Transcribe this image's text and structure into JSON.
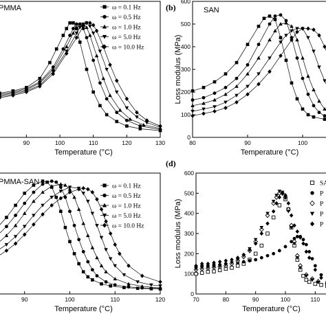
{
  "chart_data": [
    {
      "panel": "a",
      "type": "line",
      "title": "PMMA",
      "xlabel": "Temperature (°C)",
      "ylabel": "",
      "xlim": [
        78,
        130
      ],
      "ylim": [
        0,
        600
      ],
      "xticks": [
        "90",
        "100",
        "110",
        "120",
        "130"
      ],
      "yticks": [],
      "legend_position": "top-right",
      "series": [
        {
          "name": "ω = 0.1   Hz",
          "marker": "square",
          "x": [
            78,
            82,
            86,
            90,
            94,
            97,
            99,
            101,
            102,
            103,
            104,
            105,
            106,
            108,
            110,
            112,
            114,
            117,
            120,
            124,
            130
          ],
          "y": [
            190,
            195,
            205,
            220,
            260,
            330,
            390,
            450,
            480,
            505,
            505,
            480,
            420,
            300,
            200,
            140,
            100,
            70,
            50,
            38,
            30
          ]
        },
        {
          "name": "ω = 0.5   Hz",
          "marker": "circle",
          "x": [
            78,
            82,
            86,
            90,
            94,
            98,
            101,
            103,
            104,
            105,
            106,
            107,
            108,
            110,
            112,
            114,
            117,
            120,
            124,
            130
          ],
          "y": [
            185,
            190,
            200,
            215,
            245,
            310,
            390,
            450,
            480,
            500,
            500,
            480,
            440,
            340,
            240,
            170,
            110,
            75,
            50,
            35
          ]
        },
        {
          "name": "ω = 1.0   Hz",
          "marker": "triangle-up",
          "x": [
            78,
            82,
            86,
            90,
            94,
            98,
            102,
            104,
            105,
            106,
            107,
            108,
            109,
            111,
            113,
            115,
            118,
            121,
            125,
            130
          ],
          "y": [
            180,
            185,
            195,
            210,
            240,
            300,
            400,
            460,
            485,
            500,
            500,
            485,
            450,
            360,
            260,
            185,
            120,
            80,
            55,
            40
          ]
        },
        {
          "name": "ω = 5.0   Hz",
          "marker": "triangle-down",
          "x": [
            78,
            82,
            86,
            90,
            94,
            98,
            102,
            105,
            106,
            107,
            108,
            109,
            110,
            112,
            114,
            117,
            120,
            123,
            126,
            130
          ],
          "y": [
            175,
            180,
            190,
            205,
            230,
            290,
            380,
            460,
            485,
            500,
            505,
            490,
            460,
            380,
            300,
            200,
            130,
            90,
            65,
            45
          ]
        },
        {
          "name": "ω = 10.0 Hz",
          "marker": "diamond",
          "x": [
            78,
            82,
            86,
            90,
            94,
            98,
            102,
            105,
            107,
            108,
            109,
            110,
            111,
            113,
            115,
            117,
            120,
            123,
            126,
            130
          ],
          "y": [
            170,
            175,
            185,
            200,
            225,
            280,
            370,
            440,
            490,
            505,
            505,
            495,
            470,
            400,
            320,
            250,
            170,
            110,
            75,
            50
          ]
        }
      ]
    },
    {
      "panel": "b",
      "type": "line",
      "title": "SAN",
      "xlabel": "Temperature (°C)",
      "ylabel": "Loss modulus (MPa)",
      "xlim": [
        80,
        105
      ],
      "ylim": [
        0,
        600
      ],
      "xticks": [
        "80",
        "90",
        "100"
      ],
      "yticks": [
        "0",
        "100",
        "200",
        "300",
        "400",
        "500",
        "600"
      ],
      "legend_position": "top-right",
      "series": [
        {
          "name": "",
          "marker": "square",
          "x": [
            80,
            82,
            84,
            86,
            88,
            90,
            92,
            93,
            94,
            95,
            96,
            97,
            98,
            99,
            100,
            101,
            102,
            104,
            105
          ],
          "y": [
            205,
            220,
            245,
            280,
            330,
            410,
            490,
            525,
            535,
            520,
            440,
            340,
            240,
            170,
            125,
            100,
            90,
            80,
            78
          ]
        },
        {
          "name": "",
          "marker": "circle",
          "x": [
            80,
            82,
            84,
            86,
            88,
            90,
            92,
            94,
            95,
            96,
            97,
            98,
            99,
            100,
            101,
            102,
            103,
            104,
            105
          ],
          "y": [
            165,
            175,
            195,
            220,
            260,
            320,
            410,
            500,
            535,
            540,
            515,
            440,
            350,
            260,
            190,
            140,
            110,
            95,
            88
          ]
        },
        {
          "name": "",
          "marker": "triangle-up",
          "x": [
            80,
            82,
            84,
            86,
            88,
            90,
            92,
            94,
            95,
            96,
            97,
            98,
            99,
            100,
            101,
            102,
            103,
            104,
            105
          ],
          "y": [
            140,
            150,
            165,
            190,
            225,
            280,
            350,
            430,
            470,
            500,
            505,
            490,
            430,
            350,
            270,
            210,
            160,
            125,
            100
          ]
        },
        {
          "name": "",
          "marker": "triangle-down",
          "x": [
            80,
            82,
            84,
            86,
            88,
            90,
            92,
            94,
            96,
            97,
            98,
            99,
            100,
            101,
            102,
            103,
            104,
            105
          ],
          "y": [
            115,
            125,
            135,
            155,
            185,
            225,
            280,
            350,
            420,
            450,
            470,
            480,
            480,
            440,
            380,
            310,
            250,
            200
          ]
        },
        {
          "name": "",
          "marker": "diamond",
          "x": [
            80,
            82,
            84,
            86,
            88,
            90,
            92,
            94,
            96,
            98,
            99,
            100,
            101,
            102,
            103,
            104,
            105
          ],
          "y": [
            95,
            105,
            115,
            130,
            155,
            190,
            235,
            290,
            360,
            430,
            465,
            480,
            480,
            475,
            450,
            400,
            340
          ]
        }
      ]
    },
    {
      "panel": "c",
      "type": "line",
      "title": "PMMA-SAN",
      "xlabel": "Temperature (°C)",
      "ylabel": "",
      "xlim": [
        80,
        120
      ],
      "ylim": [
        0,
        600
      ],
      "xticks": [
        "90",
        "100",
        "110",
        "120"
      ],
      "yticks": [],
      "legend_position": "top-right",
      "series": [
        {
          "name": "ω = 0.1   Hz",
          "marker": "square",
          "x": [
            80,
            82,
            84,
            86,
            88,
            90,
            92,
            94,
            95,
            96,
            97,
            98,
            99,
            100,
            101,
            102,
            103,
            104,
            105,
            107,
            109,
            112,
            115,
            118,
            120
          ],
          "y": [
            260,
            290,
            330,
            380,
            440,
            500,
            540,
            560,
            555,
            530,
            480,
            410,
            330,
            260,
            200,
            150,
            110,
            85,
            70,
            50,
            40,
            32,
            28,
            26,
            25
          ]
        },
        {
          "name": "ω = 0.5   Hz",
          "marker": "circle",
          "x": [
            80,
            82,
            84,
            86,
            88,
            90,
            92,
            94,
            96,
            97,
            98,
            99,
            100,
            101,
            102,
            103,
            104,
            105,
            106,
            108,
            110,
            113,
            116,
            120
          ],
          "y": [
            230,
            255,
            290,
            335,
            390,
            450,
            505,
            545,
            560,
            555,
            530,
            480,
            410,
            340,
            270,
            210,
            160,
            120,
            90,
            60,
            45,
            35,
            30,
            27
          ]
        },
        {
          "name": "ω = 1.0   Hz",
          "marker": "triangle-up",
          "x": [
            80,
            82,
            84,
            86,
            88,
            90,
            92,
            94,
            96,
            98,
            99,
            100,
            101,
            102,
            103,
            104,
            105,
            106,
            107,
            108,
            110,
            113,
            116,
            120
          ],
          "y": [
            200,
            220,
            250,
            290,
            340,
            400,
            460,
            505,
            535,
            545,
            540,
            520,
            480,
            420,
            350,
            290,
            230,
            180,
            140,
            110,
            75,
            50,
            38,
            30
          ]
        },
        {
          "name": "ω = 5.0   Hz",
          "marker": "triangle-down",
          "x": [
            80,
            82,
            84,
            86,
            88,
            90,
            92,
            94,
            96,
            98,
            100,
            102,
            103,
            104,
            105,
            106,
            107,
            108,
            109,
            110,
            112,
            115,
            118,
            120
          ],
          "y": [
            175,
            190,
            215,
            245,
            285,
            335,
            390,
            440,
            480,
            510,
            530,
            525,
            500,
            460,
            400,
            340,
            280,
            220,
            175,
            140,
            95,
            60,
            45,
            40
          ]
        },
        {
          "name": "ω = 10.0 Hz",
          "marker": "diamond",
          "x": [
            80,
            82,
            84,
            86,
            88,
            90,
            92,
            94,
            96,
            98,
            100,
            102,
            103,
            104,
            105,
            106,
            107,
            108,
            109,
            110,
            111,
            113,
            116,
            120
          ],
          "y": [
            150,
            165,
            185,
            215,
            250,
            295,
            345,
            395,
            440,
            475,
            505,
            520,
            525,
            520,
            505,
            470,
            420,
            360,
            300,
            245,
            200,
            140,
            90,
            60
          ]
        }
      ]
    },
    {
      "panel": "d",
      "type": "scatter",
      "title": "",
      "xlabel": "Temperature (°C)",
      "ylabel": "Loss modulus (MPa)",
      "xlim": [
        70,
        115
      ],
      "ylim": [
        0,
        600
      ],
      "xticks": [
        "70",
        "80",
        "90",
        "100",
        "110"
      ],
      "yticks": [
        "0",
        "100",
        "200",
        "300",
        "400",
        "500",
        "600"
      ],
      "legend_position": "top-right",
      "series": [
        {
          "name": "SA",
          "marker": "square-open",
          "x": [
            70,
            72,
            74,
            76,
            78,
            80,
            82,
            84,
            86,
            88,
            90,
            92,
            94,
            96,
            98,
            100,
            101,
            102,
            103,
            104,
            105,
            106,
            107,
            108,
            110,
            112,
            114
          ],
          "y": [
            100,
            105,
            110,
            112,
            118,
            125,
            130,
            140,
            150,
            170,
            200,
            240,
            300,
            380,
            440,
            470,
            420,
            330,
            240,
            170,
            120,
            90,
            70,
            60,
            50,
            45,
            40
          ]
        },
        {
          "name": "P",
          "marker": "circle",
          "x": [
            70,
            72,
            74,
            76,
            78,
            80,
            82,
            84,
            86,
            88,
            90,
            92,
            94,
            96,
            98,
            100,
            102,
            103,
            104,
            105,
            106,
            107,
            108,
            109,
            110,
            112,
            114
          ],
          "y": [
            135,
            140,
            140,
            145,
            145,
            150,
            152,
            155,
            160,
            165,
            170,
            180,
            190,
            200,
            215,
            235,
            260,
            275,
            285,
            285,
            270,
            245,
            210,
            175,
            140,
            95,
            60
          ]
        },
        {
          "name": "P",
          "marker": "triangle-open",
          "x": [
            70,
            72,
            74,
            76,
            78,
            80,
            82,
            84,
            86,
            88,
            90,
            92,
            94,
            96,
            97,
            98,
            99,
            100,
            101,
            102,
            103,
            104,
            105,
            107,
            109,
            111,
            114
          ],
          "y": [
            120,
            125,
            128,
            132,
            135,
            140,
            150,
            165,
            185,
            215,
            260,
            320,
            390,
            450,
            480,
            500,
            500,
            480,
            420,
            340,
            260,
            190,
            140,
            95,
            75,
            62,
            52
          ]
        },
        {
          "name": "P",
          "marker": "triangle-down",
          "x": [
            70,
            72,
            74,
            76,
            78,
            80,
            82,
            84,
            86,
            88,
            90,
            92,
            94,
            96,
            97,
            98,
            99,
            100,
            101,
            102,
            103,
            104,
            105,
            107,
            109,
            111,
            114
          ],
          "y": [
            125,
            130,
            132,
            135,
            138,
            145,
            155,
            170,
            190,
            225,
            270,
            330,
            400,
            460,
            490,
            510,
            505,
            480,
            410,
            330,
            250,
            180,
            130,
            90,
            70,
            58,
            50
          ]
        },
        {
          "name": "P",
          "marker": "diamond",
          "x": [
            70,
            72,
            74,
            76,
            78,
            80,
            82,
            84,
            86,
            88,
            90,
            92,
            94,
            96,
            97,
            98,
            99,
            100,
            101,
            102,
            103,
            104,
            105,
            106,
            107,
            108,
            110,
            112,
            114
          ],
          "y": [
            140,
            150,
            150,
            155,
            160,
            165,
            170,
            180,
            195,
            220,
            250,
            300,
            350,
            410,
            450,
            480,
            500,
            490,
            450,
            390,
            340,
            310,
            280,
            250,
            210,
            180,
            120,
            80,
            55
          ]
        }
      ]
    }
  ]
}
